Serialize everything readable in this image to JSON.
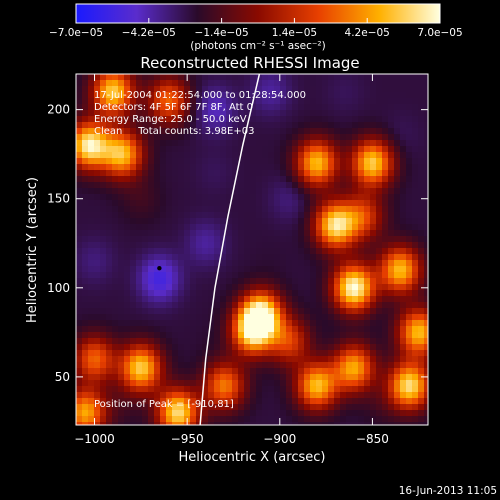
{
  "chart_data": {
    "type": "heatmap",
    "title": "Reconstructed RHESSI Image",
    "xlabel": "Heliocentric X (arcsec)",
    "ylabel": "Heliocentric Y (arcsec)",
    "xlim": [
      -1010,
      -820
    ],
    "ylim": [
      23,
      220
    ],
    "xticks": [
      -1000,
      -950,
      -900,
      -850
    ],
    "xtick_labels": [
      "−1000",
      "−950",
      "−900",
      "−850"
    ],
    "yticks": [
      50,
      100,
      150,
      200
    ],
    "ytick_labels": [
      "50",
      "100",
      "150",
      "200"
    ],
    "colorbar": {
      "range": [
        -7e-05,
        7e-05
      ],
      "ticks": [
        -7e-05,
        -4.2e-05,
        -1.4e-05,
        1.4e-05,
        4.2e-05,
        7e-05
      ],
      "tick_labels": [
        "−7.0e−05",
        "−4.2e−05",
        "−1.4e−05",
        "1.4e−05",
        "4.2e−05",
        "7.0e−05"
      ],
      "units_label": "(photons cm⁻² s⁻¹ asec⁻²)",
      "colors": [
        "#1a1aff",
        "#5a2ccc",
        "#2a0a2a",
        "#8a0a00",
        "#e84000",
        "#ffb000",
        "#ffffe0"
      ]
    },
    "annotations": [
      "17-Jul-2004 01:22:54.000 to 01:28:54.000",
      "Detectors: 4F 5F 6F 7F 8F, Att 0",
      "Energy Range: 25.0 - 50.0 keV",
      "Clean     Total counts: 3.98E+03"
    ],
    "peak_label": "Position of Peak = [-910,81]",
    "peak_position": [
      -910,
      81
    ],
    "limb_curve": [
      [
        -943,
        23
      ],
      [
        -940,
        60
      ],
      [
        -935,
        100
      ],
      [
        -928,
        140
      ],
      [
        -920,
        180
      ],
      [
        -911,
        220
      ]
    ],
    "marker_point": [
      -965,
      111
    ],
    "sources": [
      {
        "x": -990,
        "y": 210,
        "v": 5.5e-05
      },
      {
        "x": -1003,
        "y": 180,
        "v": 6.5e-05
      },
      {
        "x": -985,
        "y": 175,
        "v": 5e-05
      },
      {
        "x": -960,
        "y": 205,
        "v": 3e-05
      },
      {
        "x": -975,
        "y": 150,
        "v": -1.8e-05
      },
      {
        "x": -1000,
        "y": 115,
        "v": -3.5e-05
      },
      {
        "x": -965,
        "y": 105,
        "v": -5.5e-05
      },
      {
        "x": -940,
        "y": 125,
        "v": -4e-05
      },
      {
        "x": -935,
        "y": 165,
        "v": -3e-05
      },
      {
        "x": -935,
        "y": 200,
        "v": -4.5e-05
      },
      {
        "x": -905,
        "y": 210,
        "v": -4e-05
      },
      {
        "x": -895,
        "y": 150,
        "v": -3.5e-05
      },
      {
        "x": -905,
        "y": 115,
        "v": -2.5e-05
      },
      {
        "x": -865,
        "y": 210,
        "v": -3e-05
      },
      {
        "x": -855,
        "y": 140,
        "v": 2e-05
      },
      {
        "x": -835,
        "y": 185,
        "v": -3e-05
      },
      {
        "x": -880,
        "y": 170,
        "v": 5e-05
      },
      {
        "x": -850,
        "y": 170,
        "v": 5.5e-05
      },
      {
        "x": -870,
        "y": 135,
        "v": 6e-05
      },
      {
        "x": -860,
        "y": 100,
        "v": 7e-05
      },
      {
        "x": -835,
        "y": 110,
        "v": 5e-05
      },
      {
        "x": -910,
        "y": 85,
        "v": 6.5e-05
      },
      {
        "x": -915,
        "y": 75,
        "v": 5e-05
      },
      {
        "x": -975,
        "y": 55,
        "v": 5.5e-05
      },
      {
        "x": -955,
        "y": 30,
        "v": 6e-05
      },
      {
        "x": -1000,
        "y": 60,
        "v": 3e-05
      },
      {
        "x": -930,
        "y": 45,
        "v": 3.5e-05
      },
      {
        "x": -880,
        "y": 45,
        "v": 5e-05
      },
      {
        "x": -860,
        "y": 55,
        "v": 4.5e-05
      },
      {
        "x": -830,
        "y": 45,
        "v": 6e-05
      },
      {
        "x": -985,
        "y": 35,
        "v": -2e-05
      },
      {
        "x": -940,
        "y": 70,
        "v": -2.5e-05
      },
      {
        "x": -895,
        "y": 70,
        "v": 2e-05
      },
      {
        "x": -825,
        "y": 75,
        "v": 5e-05
      },
      {
        "x": -845,
        "y": 35,
        "v": -2e-05
      },
      {
        "x": -1005,
        "y": 30,
        "v": 4.5e-05
      }
    ]
  },
  "footer": {
    "timestamp": "16-Jun-2013 11:05"
  }
}
